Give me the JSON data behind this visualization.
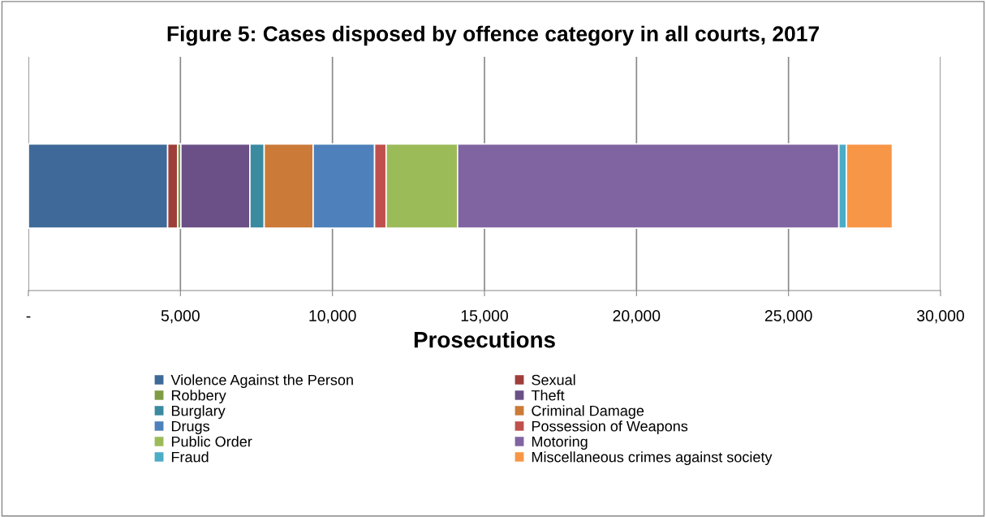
{
  "chart_data": {
    "type": "bar",
    "orientation": "horizontal",
    "stacked": true,
    "title": "Figure 5: Cases disposed by offence category in all courts, 2017",
    "xlabel": "Prosecutions",
    "categories": [
      null
    ],
    "series": [
      {
        "name": "Violence Against the Person",
        "color": "#3f6998",
        "values": [
          4580
        ]
      },
      {
        "name": "Sexual",
        "color": "#9e3e3b",
        "values": [
          330
        ]
      },
      {
        "name": "Robbery",
        "color": "#7f9b44",
        "values": [
          105
        ]
      },
      {
        "name": "Theft",
        "color": "#6a5086",
        "values": [
          2270
        ]
      },
      {
        "name": "Burglary",
        "color": "#3a8aa0",
        "values": [
          470
        ]
      },
      {
        "name": "Criminal Damage",
        "color": "#cb7a38",
        "values": [
          1610
        ]
      },
      {
        "name": "Drugs",
        "color": "#4e80bb",
        "values": [
          2020
        ]
      },
      {
        "name": "Possession of Weapons",
        "color": "#c0504d",
        "values": [
          380
        ]
      },
      {
        "name": "Public Order",
        "color": "#9bbb59",
        "values": [
          2350
        ]
      },
      {
        "name": "Motoring",
        "color": "#8064a2",
        "values": [
          12540
        ]
      },
      {
        "name": "Fraud",
        "color": "#4bacc6",
        "values": [
          250
        ]
      },
      {
        "name": "Miscellaneous crimes against society",
        "color": "#f79646",
        "values": [
          1510
        ]
      }
    ],
    "xlim": [
      0,
      30000
    ],
    "xticks": [
      {
        "value": 0,
        "label": "-"
      },
      {
        "value": 5000,
        "label": "5,000"
      },
      {
        "value": 10000,
        "label": "10,000"
      },
      {
        "value": 15000,
        "label": "15,000"
      },
      {
        "value": 20000,
        "label": "20,000"
      },
      {
        "value": 25000,
        "label": "25,000"
      },
      {
        "value": 30000,
        "label": "30,000"
      }
    ],
    "grid": "x",
    "legend": "bottom"
  }
}
